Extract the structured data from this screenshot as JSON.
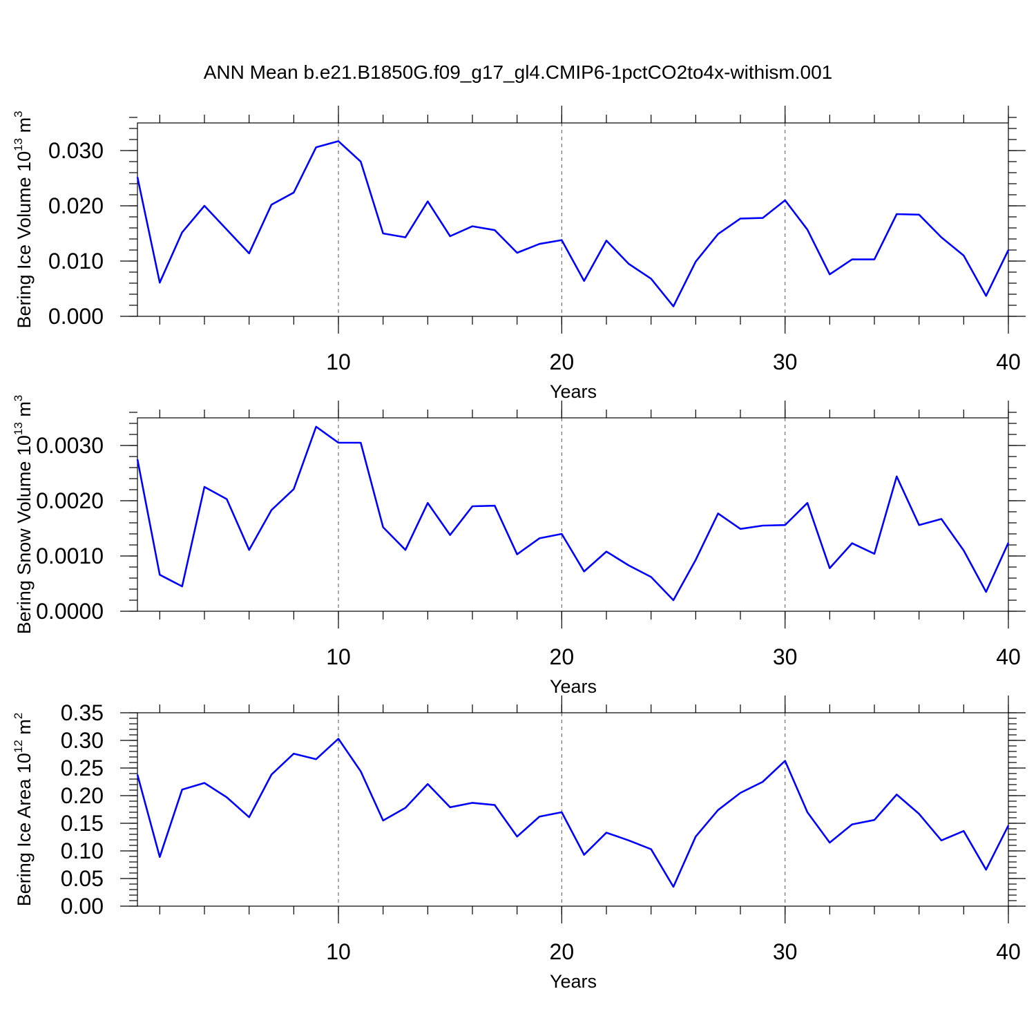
{
  "title": "ANN Mean b.e21.B1850G.f09_g17_gl4.CMIP6-1pctCO2to4x-withism.001",
  "colors": {
    "line": "#0000ff",
    "axis": "#000000",
    "grid": "#555555"
  },
  "chart_data": [
    {
      "type": "line",
      "xlabel": "Years",
      "ylabel_main": "Bering Ice Volume 10",
      "ylabel_exp1": "13",
      "ylabel_unit": " m",
      "ylabel_exp2": "3",
      "xlim": [
        1,
        40
      ],
      "ylim": [
        0,
        0.035
      ],
      "xticks": [
        10,
        20,
        30,
        40
      ],
      "xtick_labels": [
        "10",
        "20",
        "30",
        "40"
      ],
      "yticks": [
        0,
        0.01,
        0.02,
        0.03
      ],
      "ytick_labels": [
        "0.000",
        "0.010",
        "0.020",
        "0.030"
      ],
      "y_minor_step": 0.002,
      "x_minor_step": 2,
      "grid_x": [
        10,
        20,
        30
      ],
      "x": [
        1,
        2,
        3,
        4,
        5,
        6,
        7,
        8,
        9,
        10,
        11,
        12,
        13,
        14,
        15,
        16,
        17,
        18,
        19,
        20,
        21,
        22,
        23,
        24,
        25,
        26,
        27,
        28,
        29,
        30,
        31,
        32,
        33,
        34,
        35,
        36,
        37,
        38,
        39,
        40
      ],
      "values": [
        0.0252,
        0.0061,
        0.0152,
        0.02,
        0.0157,
        0.0114,
        0.0202,
        0.0224,
        0.0306,
        0.0317,
        0.028,
        0.015,
        0.0143,
        0.0208,
        0.0145,
        0.0163,
        0.0156,
        0.0115,
        0.0131,
        0.0138,
        0.0064,
        0.0137,
        0.0095,
        0.0068,
        0.0018,
        0.0099,
        0.0149,
        0.0177,
        0.0178,
        0.021,
        0.0157,
        0.0076,
        0.0103,
        0.0103,
        0.0185,
        0.0184,
        0.0143,
        0.011,
        0.0037,
        0.012
      ]
    },
    {
      "type": "line",
      "xlabel": "Years",
      "ylabel_main": "Bering Snow Volume 10",
      "ylabel_exp1": "13",
      "ylabel_unit": " m",
      "ylabel_exp2": "3",
      "xlim": [
        1,
        40
      ],
      "ylim": [
        0,
        0.0035
      ],
      "xticks": [
        10,
        20,
        30,
        40
      ],
      "xtick_labels": [
        "10",
        "20",
        "30",
        "40"
      ],
      "yticks": [
        0,
        0.001,
        0.002,
        0.003
      ],
      "ytick_labels": [
        "0.0000",
        "0.0010",
        "0.0020",
        "0.0030"
      ],
      "y_minor_step": 0.0002,
      "x_minor_step": 2,
      "grid_x": [
        10,
        20,
        30
      ],
      "x": [
        1,
        2,
        3,
        4,
        5,
        6,
        7,
        8,
        9,
        10,
        11,
        12,
        13,
        14,
        15,
        16,
        17,
        18,
        19,
        20,
        21,
        22,
        23,
        24,
        25,
        26,
        27,
        28,
        29,
        30,
        31,
        32,
        33,
        34,
        35,
        36,
        37,
        38,
        39,
        40
      ],
      "values": [
        0.00275,
        0.00066,
        0.00045,
        0.00225,
        0.00203,
        0.00111,
        0.00183,
        0.00221,
        0.00334,
        0.00305,
        0.00305,
        0.00152,
        0.00111,
        0.00196,
        0.00138,
        0.0019,
        0.00191,
        0.00103,
        0.00132,
        0.0014,
        0.00072,
        0.00108,
        0.00083,
        0.00062,
        0.0002,
        0.00093,
        0.00177,
        0.00149,
        0.00155,
        0.00156,
        0.00196,
        0.00078,
        0.00123,
        0.00104,
        0.00244,
        0.00156,
        0.00167,
        0.0011,
        0.00035,
        0.00124
      ]
    },
    {
      "type": "line",
      "xlabel": "Years",
      "ylabel_main": "Bering Ice Area 10",
      "ylabel_exp1": "12",
      "ylabel_unit": " m",
      "ylabel_exp2": "2",
      "xlim": [
        1,
        40
      ],
      "ylim": [
        0,
        0.35
      ],
      "xticks": [
        10,
        20,
        30,
        40
      ],
      "xtick_labels": [
        "10",
        "20",
        "30",
        "40"
      ],
      "yticks": [
        0,
        0.05,
        0.1,
        0.15,
        0.2,
        0.25,
        0.3,
        0.35
      ],
      "ytick_labels": [
        "0.00",
        "0.05",
        "0.10",
        "0.15",
        "0.20",
        "0.25",
        "0.30",
        "0.35"
      ],
      "y_minor_step": 0.01,
      "x_minor_step": 2,
      "grid_x": [
        10,
        20,
        30
      ],
      "x": [
        1,
        2,
        3,
        4,
        5,
        6,
        7,
        8,
        9,
        10,
        11,
        12,
        13,
        14,
        15,
        16,
        17,
        18,
        19,
        20,
        21,
        22,
        23,
        24,
        25,
        26,
        27,
        28,
        29,
        30,
        31,
        32,
        33,
        34,
        35,
        36,
        37,
        38,
        39,
        40
      ],
      "values": [
        0.238,
        0.089,
        0.211,
        0.223,
        0.197,
        0.161,
        0.238,
        0.276,
        0.266,
        0.303,
        0.244,
        0.155,
        0.178,
        0.221,
        0.179,
        0.187,
        0.183,
        0.126,
        0.162,
        0.17,
        0.093,
        0.133,
        0.119,
        0.103,
        0.035,
        0.126,
        0.174,
        0.205,
        0.225,
        0.263,
        0.17,
        0.115,
        0.148,
        0.156,
        0.202,
        0.167,
        0.119,
        0.136,
        0.066,
        0.146
      ]
    }
  ]
}
